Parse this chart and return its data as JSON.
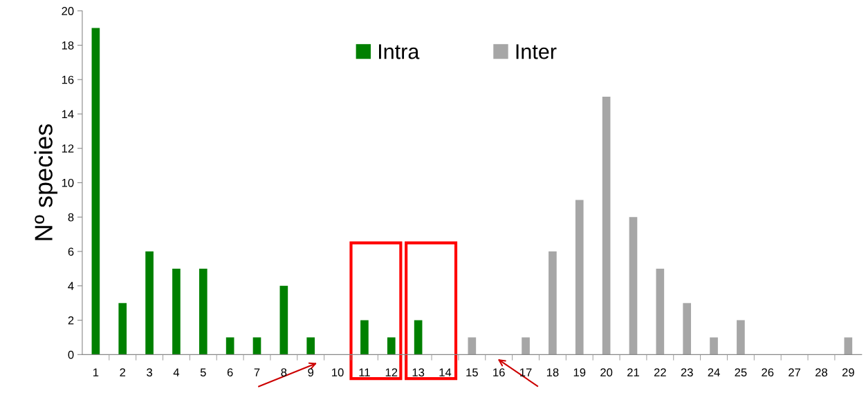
{
  "chart_data": {
    "type": "bar",
    "ylabel": "Nº species",
    "categories": [
      "1",
      "2",
      "3",
      "4",
      "5",
      "6",
      "7",
      "8",
      "9",
      "10",
      "11",
      "12",
      "13",
      "14",
      "15",
      "16",
      "17",
      "18",
      "19",
      "20",
      "21",
      "22",
      "23",
      "24",
      "25",
      "26",
      "27",
      "28",
      "29"
    ],
    "series": [
      {
        "name": "Intra",
        "color": "#008000",
        "values": [
          19,
          3,
          6,
          5,
          5,
          1,
          1,
          4,
          1,
          0,
          2,
          1,
          2,
          0,
          null,
          null,
          null,
          null,
          null,
          null,
          null,
          null,
          null,
          null,
          null,
          null,
          null,
          null,
          null
        ]
      },
      {
        "name": "Inter",
        "color": "#a6a6a6",
        "values": [
          null,
          null,
          null,
          null,
          null,
          null,
          null,
          null,
          null,
          null,
          null,
          null,
          null,
          null,
          1,
          0,
          1,
          6,
          9,
          15,
          8,
          5,
          3,
          1,
          2,
          0,
          0,
          0,
          1
        ]
      }
    ],
    "ylim": [
      0,
      20
    ],
    "yticks": [
      0,
      2,
      4,
      6,
      8,
      10,
      12,
      14,
      16,
      18,
      20
    ],
    "grid": false,
    "legend": "top"
  }
}
